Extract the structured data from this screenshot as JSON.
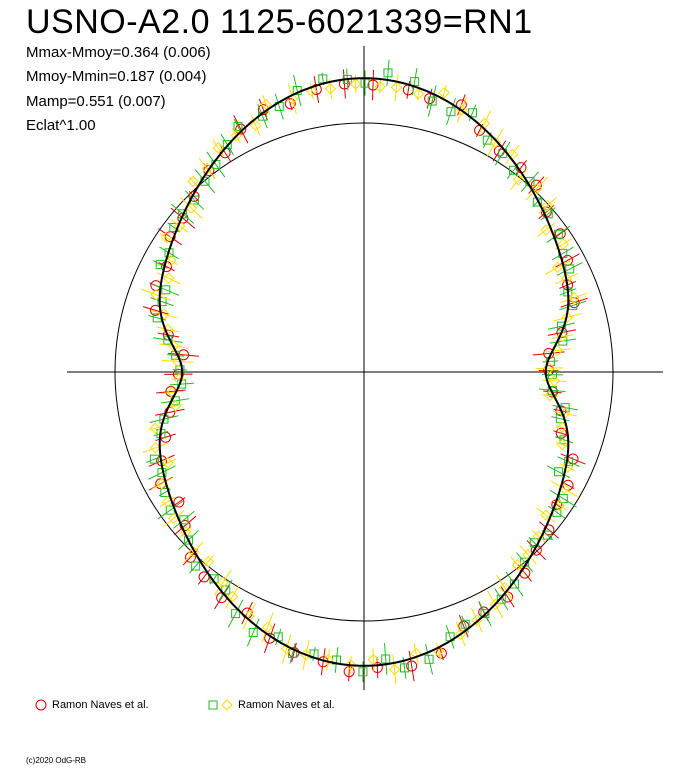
{
  "title": "USNO-A2.0 1125-6021339=RN1",
  "stats": [
    "Mmax-Mmoy=0.364 (0.006)",
    "Mmoy-Mmin=0.187 (0.004)",
    "Mamp=0.551 (0.007)",
    "Eclat^1.00"
  ],
  "legend": [
    {
      "label": "Ramon Naves et al.",
      "markers": [
        "circle"
      ],
      "colors": [
        "#dd0000"
      ]
    },
    {
      "label": "Ramon Naves et al.",
      "markers": [
        "square",
        "diamond"
      ],
      "colors": [
        "#22bb22",
        "#ffdd00"
      ]
    }
  ],
  "copyright": "(c)2020 OdG-RB",
  "chart_data": {
    "type": "scatter",
    "projection": "polar",
    "description_of_axes": "polar light curve: angle = phase, radius = scaled brightness",
    "reference_circle_radius": 1.0,
    "amplitude": 0.551,
    "mmax_minus_mmoy": 0.364,
    "mmoy_minus_mmin": 0.187,
    "fit_curve_color": "#000000",
    "phase_step": 0.02,
    "series": [
      {
        "name": "Ramon Naves et al.",
        "marker": "circle",
        "color": "#dd0000",
        "phase_offset": 0.005,
        "count": 62
      },
      {
        "name": "Ramon Naves et al.",
        "marker": "square",
        "color": "#22bb22",
        "phase_offset": 0.012,
        "count": 80
      },
      {
        "name": "Ramon Naves et al.",
        "marker": "diamond",
        "color": "#ffdd00",
        "phase_offset": 0.018,
        "count": 80
      }
    ]
  }
}
